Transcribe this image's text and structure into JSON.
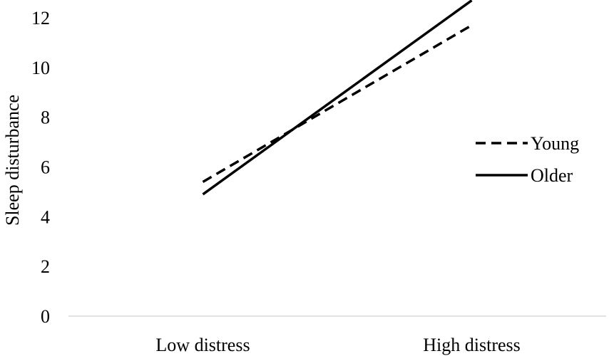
{
  "chart_data": {
    "type": "line",
    "title": "",
    "xlabel": "",
    "ylabel": "Sleep disturbance",
    "categories": [
      "Low distress",
      "High distress"
    ],
    "ylim": [
      0,
      12
    ],
    "yticks": [
      0,
      2,
      4,
      6,
      8,
      10,
      12
    ],
    "grid": false,
    "legend_position": "right",
    "series": [
      {
        "name": "Young",
        "style": "dashed",
        "color": "#000000",
        "values": [
          5.4,
          11.7
        ]
      },
      {
        "name": "Older",
        "style": "solid",
        "color": "#000000",
        "values": [
          4.9,
          12.7
        ]
      }
    ]
  }
}
